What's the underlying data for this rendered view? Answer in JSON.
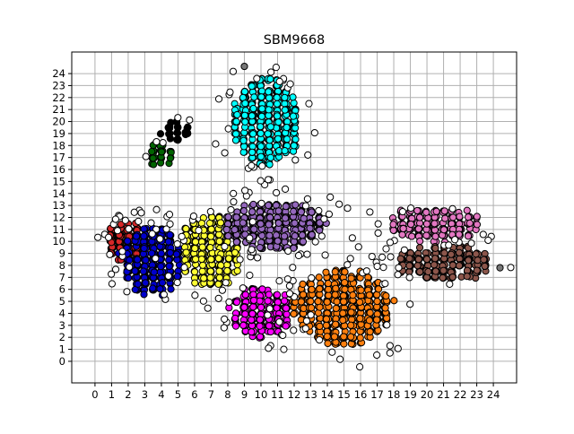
{
  "chart_data": {
    "type": "scatter",
    "title": "SBM9668",
    "xlabel": "",
    "ylabel": "",
    "x_ticks": [
      "0",
      "1",
      "2",
      "3",
      "4",
      "5",
      "6",
      "7",
      "8",
      "9",
      "10",
      "11",
      "12",
      "13",
      "14",
      "15",
      "16",
      "17",
      "18",
      "19",
      "20",
      "21",
      "22",
      "23",
      "24"
    ],
    "y_ticks": [
      "0",
      "1",
      "2",
      "3",
      "4",
      "5",
      "6",
      "7",
      "8",
      "9",
      "10",
      "11",
      "12",
      "13",
      "14",
      "15",
      "16",
      "17",
      "18",
      "19",
      "20",
      "21",
      "22",
      "23",
      "24"
    ],
    "xlim": [
      -1.4,
      25.4
    ],
    "ylim": [
      -1.8,
      25.8
    ],
    "grid": true,
    "legend": "none",
    "clusters": [
      {
        "color": "#d62728",
        "center": [
          1.9,
          9.9
        ],
        "extent": [
          1.2,
          1.5
        ],
        "count": 200
      },
      {
        "color": "#0000cc",
        "center": [
          3.4,
          8.4
        ],
        "extent": [
          1.7,
          2.8
        ],
        "count": 320
      },
      {
        "color": "#000000",
        "center": [
          4.9,
          19.3
        ],
        "extent": [
          0.8,
          0.8
        ],
        "count": 35
      },
      {
        "color": "#006400",
        "center": [
          3.9,
          17.3
        ],
        "extent": [
          0.8,
          0.8
        ],
        "count": 30
      },
      {
        "color": "#ffff33",
        "center": [
          7.0,
          9.3
        ],
        "extent": [
          1.8,
          3.0
        ],
        "count": 300
      },
      {
        "color": "#9467bd",
        "center": [
          10.8,
          11.3
        ],
        "extent": [
          3.0,
          1.9
        ],
        "count": 360
      },
      {
        "color": "#00ffff",
        "center": [
          10.3,
          20.0
        ],
        "extent": [
          1.9,
          3.7
        ],
        "count": 420
      },
      {
        "color": "#ff00ff",
        "center": [
          10.0,
          4.1
        ],
        "extent": [
          1.8,
          2.0
        ],
        "count": 220
      },
      {
        "color": "#ff7f0e",
        "center": [
          15.0,
          4.5
        ],
        "extent": [
          2.9,
          3.1
        ],
        "count": 460
      },
      {
        "color": "#e377c2",
        "center": [
          20.5,
          11.4
        ],
        "extent": [
          2.7,
          1.4
        ],
        "count": 170
      },
      {
        "color": "#8c564b",
        "center": [
          21.0,
          8.2
        ],
        "extent": [
          2.8,
          1.4
        ],
        "count": 210
      }
    ],
    "outlier_color": "#ffffff",
    "gray_points": [
      [
        9.0,
        24.6
      ],
      [
        24.4,
        7.8
      ]
    ]
  }
}
